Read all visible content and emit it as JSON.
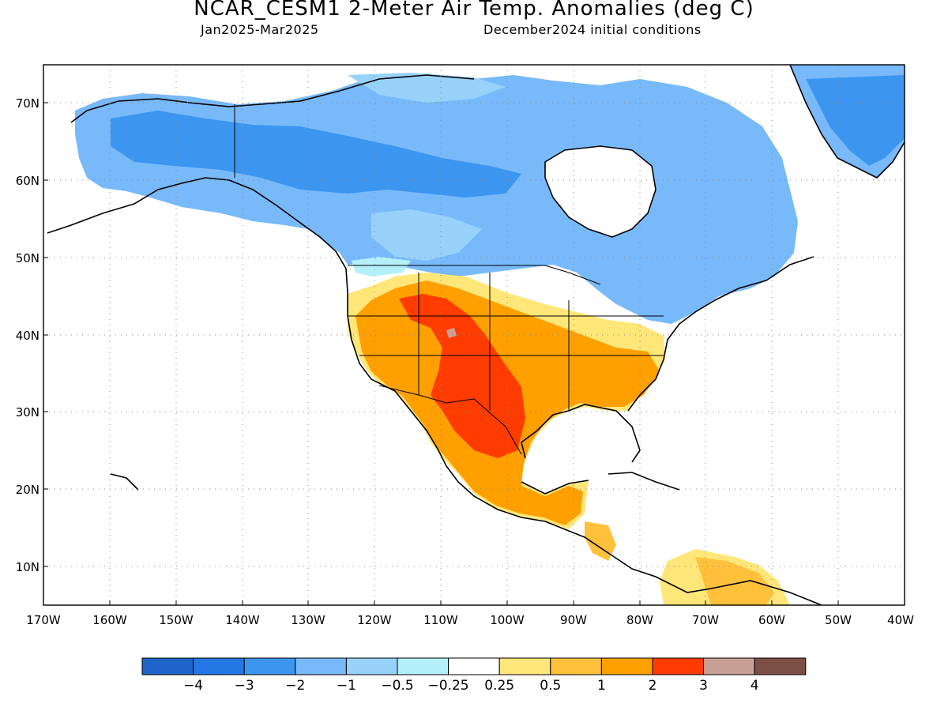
{
  "header": {
    "title": "NCAR_CESM1 2-Meter Air Temp. Anomalies (deg C)",
    "period": "Jan2025-Mar2025",
    "init": "December2024 initial conditions"
  },
  "map": {
    "region": "North America",
    "projection": "cylindrical equidistant",
    "lon_range": [
      -170,
      -40
    ],
    "lat_range": [
      5,
      75
    ],
    "grid": "dotted",
    "lat_ticks": [
      "70N",
      "60N",
      "50N",
      "40N",
      "30N",
      "20N",
      "10N"
    ],
    "lon_ticks": [
      "170W",
      "160W",
      "150W",
      "140W",
      "130W",
      "120W",
      "110W",
      "100W",
      "90W",
      "80W",
      "70W",
      "60W",
      "50W",
      "40W"
    ]
  },
  "colorbar": {
    "colors": [
      "#1e64c8",
      "#2378e6",
      "#3c96f0",
      "#78b9fa",
      "#96d2fa",
      "#b4f0fa",
      "#ffffff",
      "#ffe678",
      "#ffc03c",
      "#ffa000",
      "#ff3c00",
      "#c8a096",
      "#7d5046"
    ],
    "labels": [
      "-4",
      "-3",
      "-2",
      "-1",
      "-0.5",
      "-0.25",
      "0.25",
      "0.5",
      "1",
      "2",
      "3",
      "4"
    ]
  }
}
